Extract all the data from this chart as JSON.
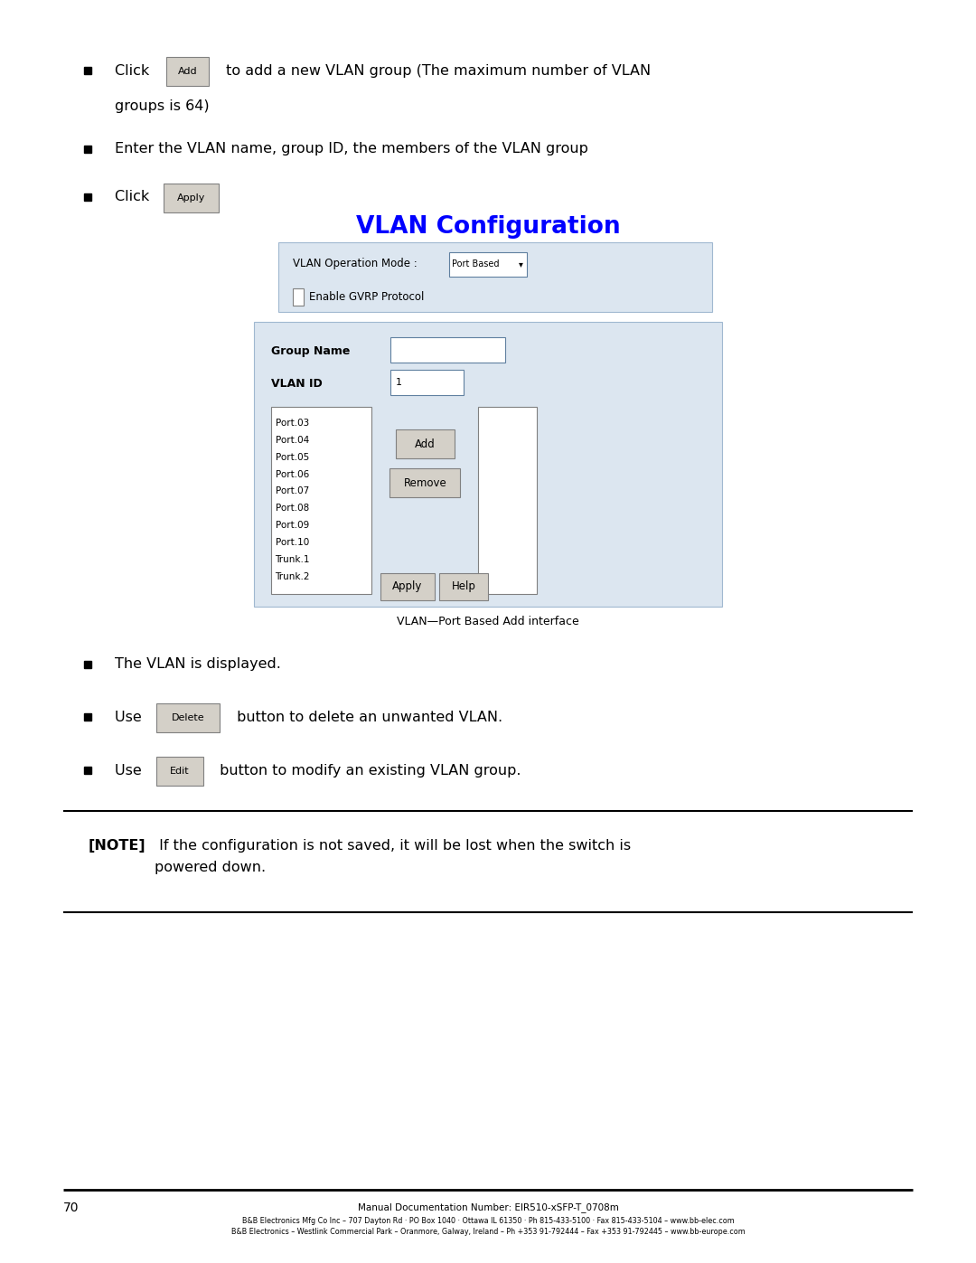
{
  "bg_color": "#ffffff",
  "page_width": 10.8,
  "page_height": 13.97,
  "blue_color": "#0000ff",
  "panel_bg": "#dce6f0",
  "panel_border": "#a0b8d0",
  "list_items": [
    "Port.03",
    "Port.04",
    "Port.05",
    "Port.06",
    "Port.07",
    "Port.08",
    "Port.09",
    "Port.10",
    "Trunk.1",
    "Trunk.2"
  ],
  "vlan_title": "VLAN Configuration",
  "caption": "VLAN—Port Based Add interface",
  "footer_text1": "Manual Documentation Number: EIR510-xSFP-T_0708m",
  "footer_text2": "B&B Electronics Mfg Co Inc – 707 Dayton Rd · PO Box 1040 · Ottawa IL 61350 · Ph 815-433-5100 · Fax 815-433-5104 – www.bb-elec.com",
  "footer_text3": "B&B Electronics – Westlink Commercial Park – Oranmore, Galway, Ireland – Ph +353 91-792444 – Fax +353 91-792445 – www.bb-europe.com",
  "note_text_bold": "[NOTE]",
  "note_text_rest": " If the configuration is not saved, it will be lost when the switch is\npowered down."
}
